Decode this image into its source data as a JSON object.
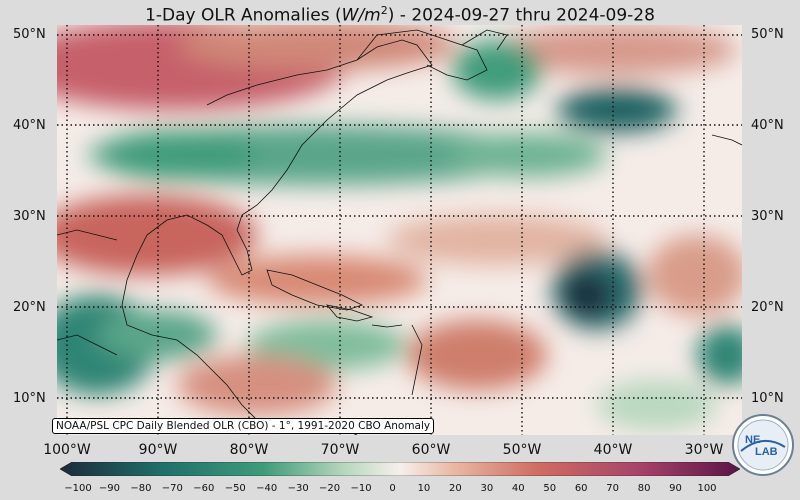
{
  "title": {
    "pre": "1-Day OLR Anomalies (",
    "unit_var": "W/m",
    "unit_exp": "2",
    "post": ") - 2024-09-27 thru 2024-09-28"
  },
  "lat_labels": [
    "50°N",
    "40°N",
    "30°N",
    "20°N",
    "10°N"
  ],
  "lon_labels": [
    "100°W",
    "90°W",
    "80°W",
    "70°W",
    "60°W",
    "50°W",
    "40°W",
    "30°W"
  ],
  "credit": "NOAA/PSL CPC Daily Blended OLR (CBO) - 1°, 1991-2020 CBO Anomaly",
  "logo_text": {
    "top": "NE",
    "bottom": "LAB"
  },
  "colorbar": {
    "ticks": [
      "−100",
      "−90",
      "−80",
      "−70",
      "−60",
      "−50",
      "−40",
      "−30",
      "−20",
      "−10",
      "0",
      "10",
      "20",
      "30",
      "40",
      "50",
      "60",
      "70",
      "80",
      "90",
      "100"
    ],
    "colors": {
      "neg_extreme": "#1c2a3a",
      "neg_strong": "#1f6f6a",
      "neg_mid": "#3f9c7b",
      "neg_weak": "#b9d8bf",
      "neutral": "#f7efec",
      "pos_weak": "#e8b8a4",
      "pos_mid": "#cf6e62",
      "pos_strong": "#a8446a",
      "pos_extreme": "#5a1446"
    }
  }
}
